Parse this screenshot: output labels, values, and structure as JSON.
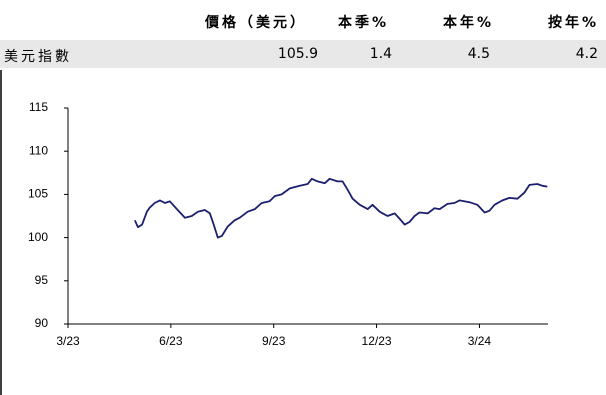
{
  "table": {
    "columns": [
      "價格（美元）",
      "本季%",
      "本年%",
      "按年%"
    ],
    "rows": [
      [
        "美元指數",
        "105.9",
        "1.4",
        "4.5",
        "4.2"
      ]
    ]
  },
  "chart_data": {
    "type": "line",
    "xlim": [
      0,
      14
    ],
    "xticks": [
      {
        "value": 0,
        "label": "3/23"
      },
      {
        "value": 3,
        "label": "6/23"
      },
      {
        "value": 6,
        "label": "9/23"
      },
      {
        "value": 9,
        "label": "12/23"
      },
      {
        "value": 12,
        "label": "3/24"
      }
    ],
    "ylim": [
      90,
      115
    ],
    "yticks": [
      90,
      95,
      100,
      105,
      110,
      115
    ],
    "series": [
      {
        "color": "#1b1f6e",
        "x": [
          1.95,
          2.04,
          2.16,
          2.3,
          2.39,
          2.53,
          2.68,
          2.83,
          2.97,
          3.2,
          3.41,
          3.61,
          3.79,
          3.99,
          4.14,
          4.25,
          4.37,
          4.49,
          4.66,
          4.86,
          5.01,
          5.24,
          5.45,
          5.65,
          5.88,
          6.03,
          6.23,
          6.47,
          6.76,
          6.99,
          7.11,
          7.28,
          7.49,
          7.63,
          7.86,
          8.01,
          8.16,
          8.3,
          8.51,
          8.74,
          8.88,
          9.09,
          9.32,
          9.53,
          9.67,
          9.82,
          9.96,
          10.11,
          10.25,
          10.49,
          10.69,
          10.84,
          11.07,
          11.27,
          11.42,
          11.71,
          11.94,
          12.15,
          12.29,
          12.44,
          12.67,
          12.87,
          13.11,
          13.31,
          13.46,
          13.69,
          13.84,
          13.98
        ],
        "values": [
          102,
          101.2,
          101.5,
          103,
          103.5,
          104,
          104.3,
          104,
          104.2,
          103.2,
          102.3,
          102.5,
          103,
          103.2,
          102.8,
          101.5,
          100,
          100.2,
          101.3,
          102,
          102.3,
          103,
          103.3,
          104,
          104.2,
          104.8,
          105,
          105.7,
          106,
          106.2,
          106.8,
          106.5,
          106.3,
          106.8,
          106.5,
          106.5,
          105.5,
          104.5,
          103.8,
          103.3,
          103.8,
          103,
          102.5,
          102.8,
          102.2,
          101.5,
          101.8,
          102.5,
          102.9,
          102.8,
          103.4,
          103.3,
          103.9,
          104,
          104.3,
          104.1,
          103.8,
          102.9,
          103.1,
          103.8,
          104.3,
          104.6,
          104.5,
          105.2,
          106.1,
          106.2,
          106,
          105.9
        ]
      }
    ]
  }
}
